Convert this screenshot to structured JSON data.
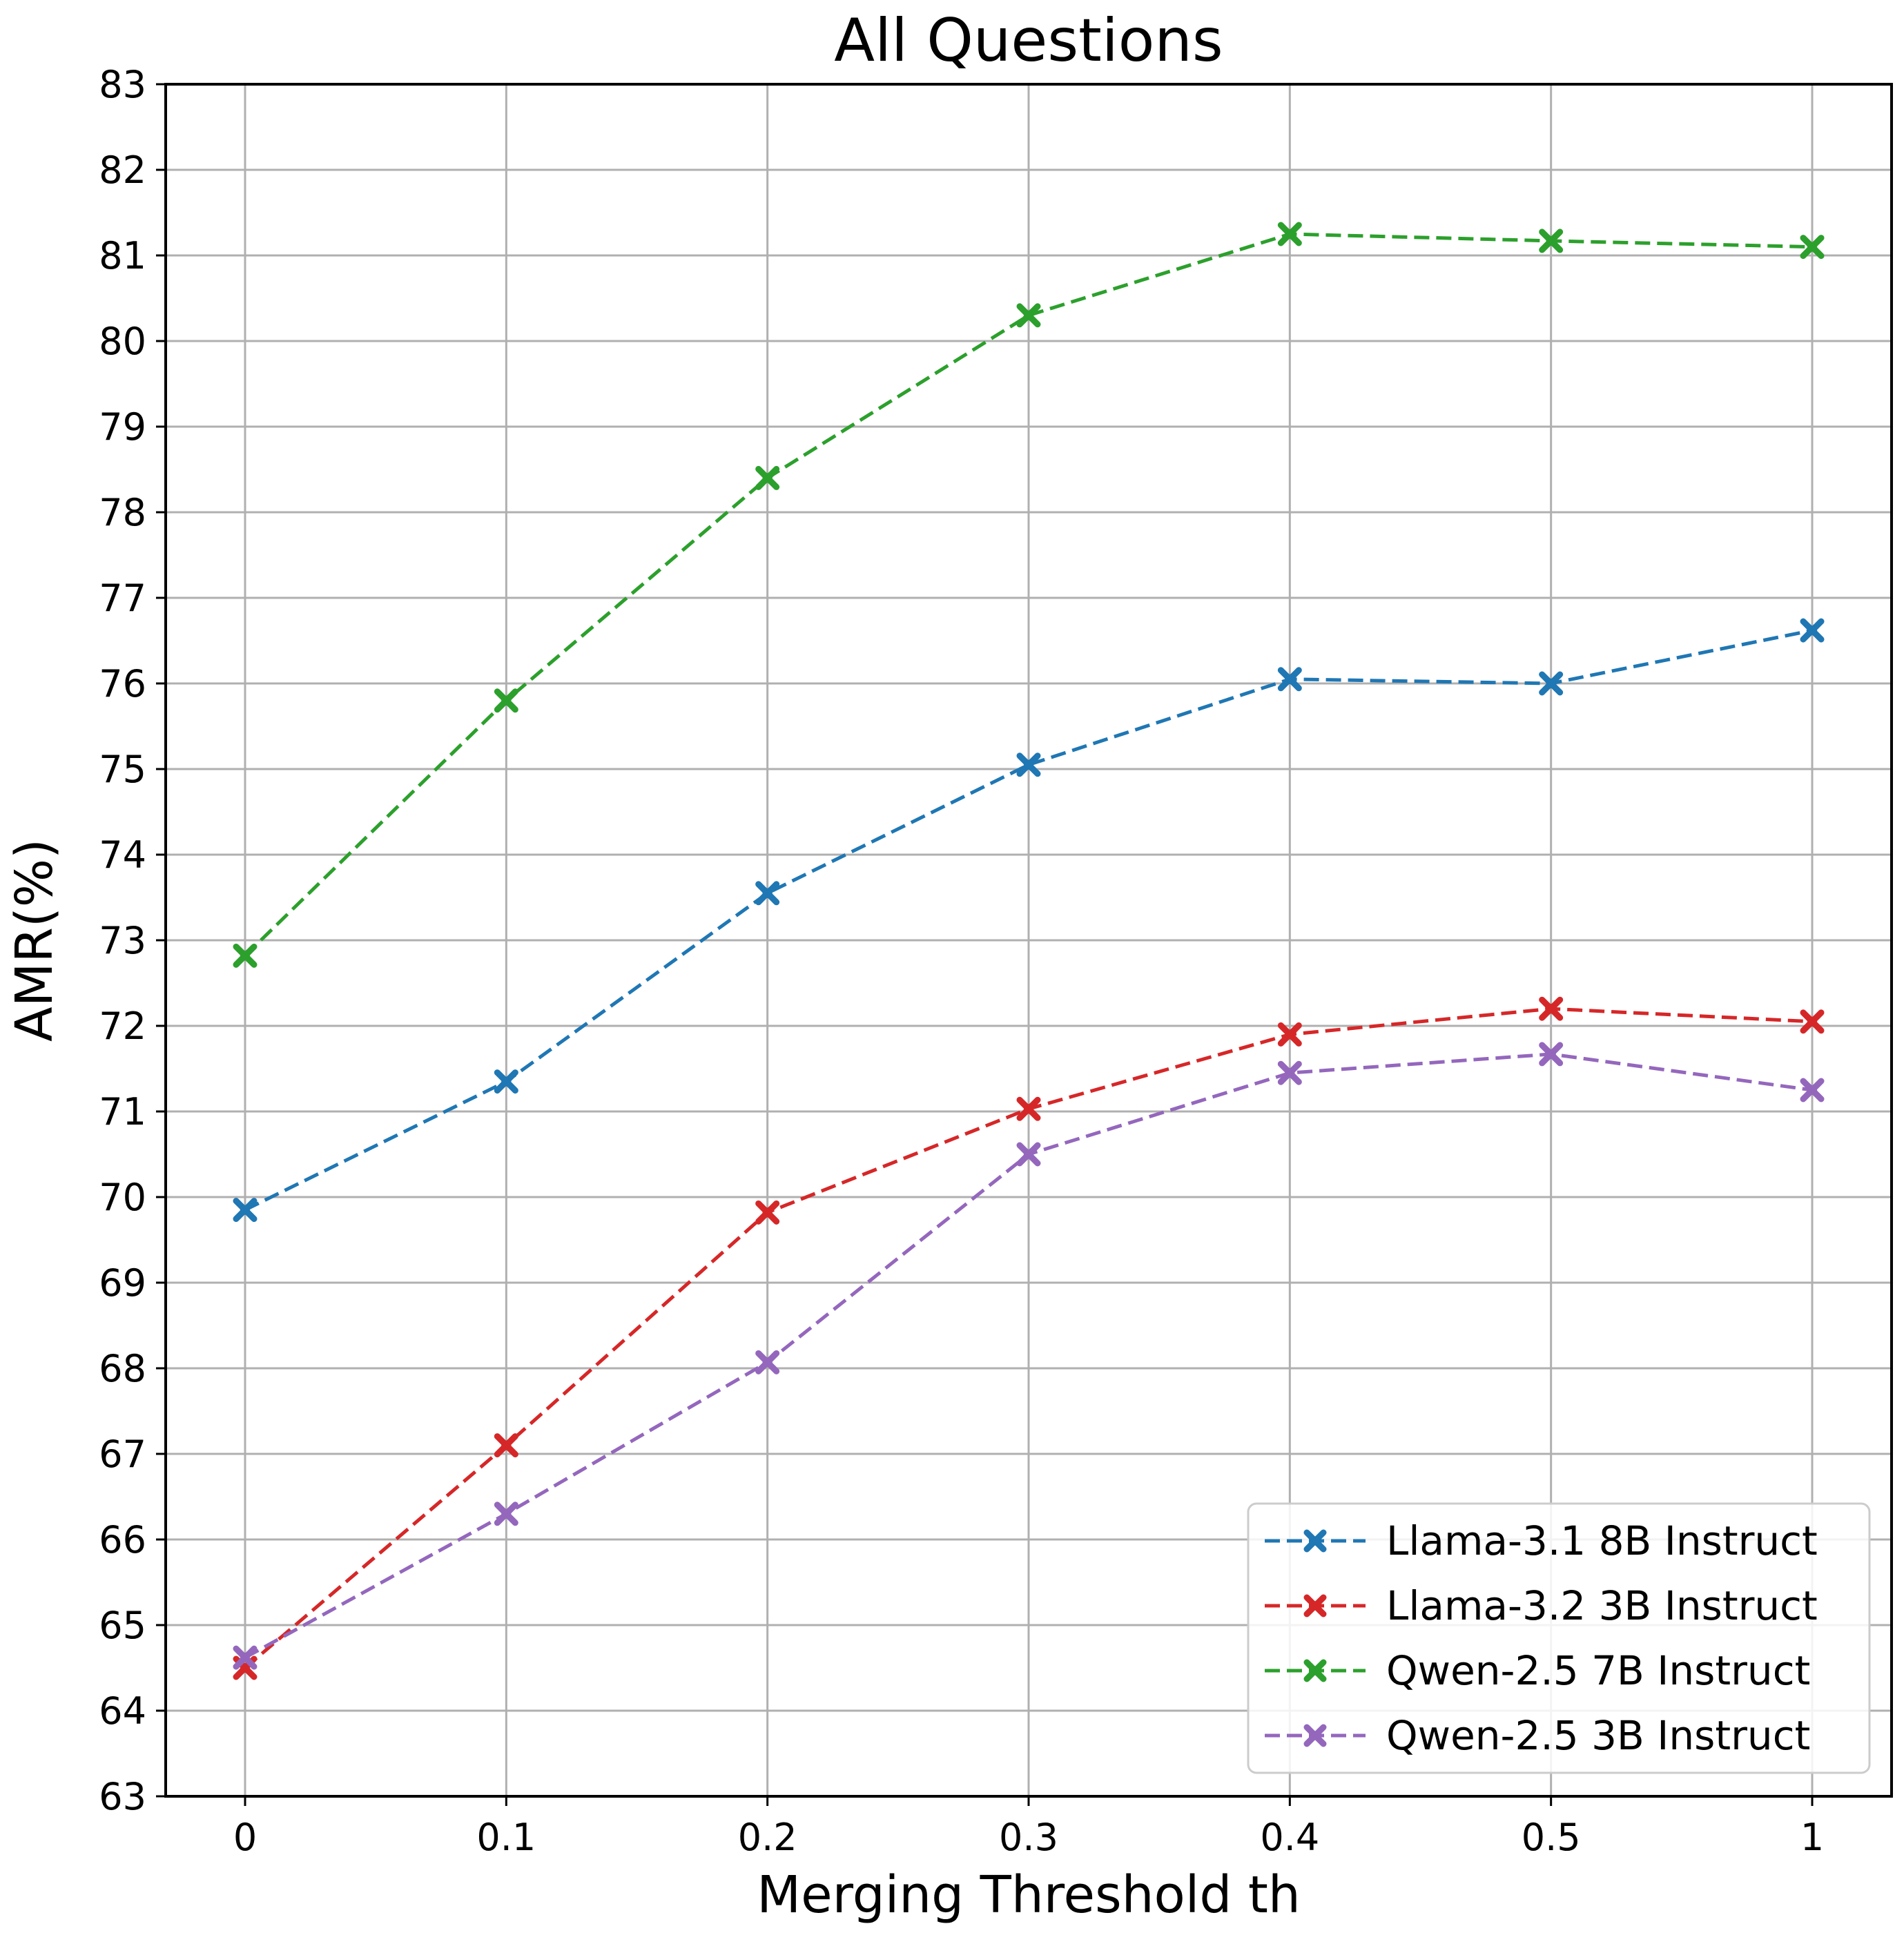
{
  "chart_data": {
    "type": "line",
    "title": "All Questions",
    "xlabel": "Merging Threshold th",
    "ylabel": "AMR(%)",
    "categories": [
      "0",
      "0.1",
      "0.2",
      "0.3",
      "0.4",
      "0.5",
      "1"
    ],
    "ylim": [
      63,
      83
    ],
    "yticks": [
      63,
      64,
      65,
      66,
      67,
      68,
      69,
      70,
      71,
      72,
      73,
      74,
      75,
      76,
      77,
      78,
      79,
      80,
      81,
      82,
      83
    ],
    "grid": true,
    "legend_position": "bottom-right",
    "line_style": "dashed",
    "marker": "x",
    "series": [
      {
        "name": "Llama-3.1 8B Instruct",
        "color": "#1f77b4",
        "values": [
          69.85,
          71.35,
          73.55,
          75.05,
          76.05,
          76.0,
          76.62
        ]
      },
      {
        "name": "Llama-3.2 3B Instruct",
        "color": "#d62728",
        "values": [
          64.5,
          67.1,
          69.82,
          71.03,
          71.9,
          72.2,
          72.05
        ]
      },
      {
        "name": "Qwen-2.5 7B Instruct",
        "color": "#2ca02c",
        "values": [
          72.82,
          75.8,
          78.4,
          80.3,
          81.25,
          81.17,
          81.1
        ]
      },
      {
        "name": "Qwen-2.5 3B Instruct",
        "color": "#9467bd",
        "values": [
          64.62,
          66.3,
          68.07,
          70.5,
          71.45,
          71.67,
          71.25
        ]
      }
    ]
  }
}
